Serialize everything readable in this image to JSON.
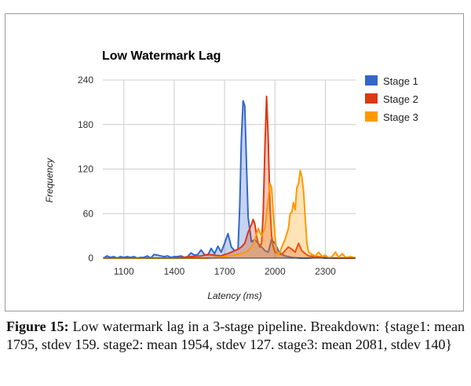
{
  "chart_data": {
    "type": "area",
    "title": "Low Watermark Lag",
    "xlabel": "Latency (ms)",
    "ylabel": "Frequency",
    "xlim": [
      975,
      2480
    ],
    "ylim": [
      0,
      240
    ],
    "x_ticks": [
      1100,
      1400,
      1700,
      2000,
      2300
    ],
    "y_ticks": [
      0,
      60,
      120,
      180,
      240
    ],
    "legend_position": "top-right",
    "series": [
      {
        "name": "Stage 1",
        "color": "#3366cc",
        "x": [
          980,
          1000,
          1020,
          1040,
          1060,
          1080,
          1100,
          1120,
          1140,
          1160,
          1180,
          1200,
          1220,
          1240,
          1260,
          1280,
          1300,
          1320,
          1340,
          1360,
          1380,
          1400,
          1420,
          1440,
          1460,
          1480,
          1500,
          1520,
          1540,
          1560,
          1580,
          1600,
          1620,
          1640,
          1660,
          1680,
          1700,
          1720,
          1740,
          1760,
          1780,
          1790,
          1800,
          1810,
          1820,
          1830,
          1840,
          1860,
          1880,
          1900,
          1920,
          1940,
          1960,
          1980,
          2000,
          2020,
          2040,
          2060,
          2080,
          2100,
          2150,
          2200,
          2250,
          2300,
          2350,
          2400,
          2450,
          2480
        ],
        "values": [
          0,
          3,
          1,
          2,
          0,
          2,
          1,
          2,
          1,
          2,
          0,
          1,
          1,
          3,
          0,
          5,
          4,
          3,
          2,
          3,
          1,
          2,
          2,
          3,
          1,
          2,
          7,
          4,
          5,
          11,
          5,
          4,
          13,
          6,
          16,
          8,
          20,
          33,
          15,
          10,
          12,
          70,
          160,
          212,
          205,
          130,
          55,
          22,
          25,
          20,
          15,
          10,
          8,
          25,
          20,
          10,
          5,
          3,
          2,
          1,
          0,
          0,
          1,
          0,
          0,
          0,
          0,
          0
        ]
      },
      {
        "name": "Stage 2",
        "color": "#dc3912",
        "x": [
          980,
          1400,
          1500,
          1560,
          1600,
          1640,
          1680,
          1700,
          1720,
          1740,
          1760,
          1780,
          1800,
          1820,
          1840,
          1860,
          1870,
          1880,
          1890,
          1900,
          1910,
          1920,
          1930,
          1940,
          1950,
          1960,
          1970,
          1980,
          1990,
          2000,
          2020,
          2040,
          2060,
          2080,
          2100,
          2120,
          2140,
          2160,
          2180,
          2200,
          2250,
          2300,
          2350,
          2400,
          2450,
          2480
        ],
        "values": [
          0,
          0,
          2,
          3,
          5,
          4,
          3,
          5,
          6,
          8,
          10,
          12,
          15,
          20,
          35,
          45,
          52,
          46,
          30,
          20,
          15,
          20,
          60,
          150,
          218,
          160,
          70,
          30,
          15,
          8,
          6,
          5,
          10,
          15,
          12,
          8,
          20,
          10,
          6,
          3,
          2,
          1,
          0,
          0,
          0,
          0
        ]
      },
      {
        "name": "Stage 3",
        "color": "#ff9900",
        "x": [
          980,
          1600,
          1700,
          1750,
          1800,
          1840,
          1860,
          1880,
          1900,
          1920,
          1940,
          1960,
          1970,
          1980,
          1990,
          2000,
          2010,
          2020,
          2030,
          2040,
          2060,
          2080,
          2090,
          2100,
          2110,
          2120,
          2130,
          2140,
          2150,
          2160,
          2170,
          2180,
          2190,
          2200,
          2220,
          2240,
          2260,
          2280,
          2300,
          2320,
          2340,
          2360,
          2380,
          2400,
          2420,
          2450,
          2480
        ],
        "values": [
          0,
          0,
          2,
          4,
          6,
          10,
          15,
          25,
          40,
          30,
          40,
          80,
          101,
          95,
          60,
          30,
          10,
          5,
          8,
          15,
          25,
          40,
          60,
          62,
          75,
          65,
          95,
          100,
          118,
          110,
          90,
          55,
          20,
          8,
          5,
          3,
          8,
          2,
          4,
          0,
          2,
          8,
          1,
          6,
          1,
          2,
          0
        ]
      }
    ]
  },
  "caption": {
    "label": "Figure 15:",
    "text": "Low watermark lag in a 3-stage pipeline. Breakdown: {stage1: mean 1795, stdev 159. stage2: mean 1954, stdev 127. stage3: mean 2081, stdev 140}"
  }
}
